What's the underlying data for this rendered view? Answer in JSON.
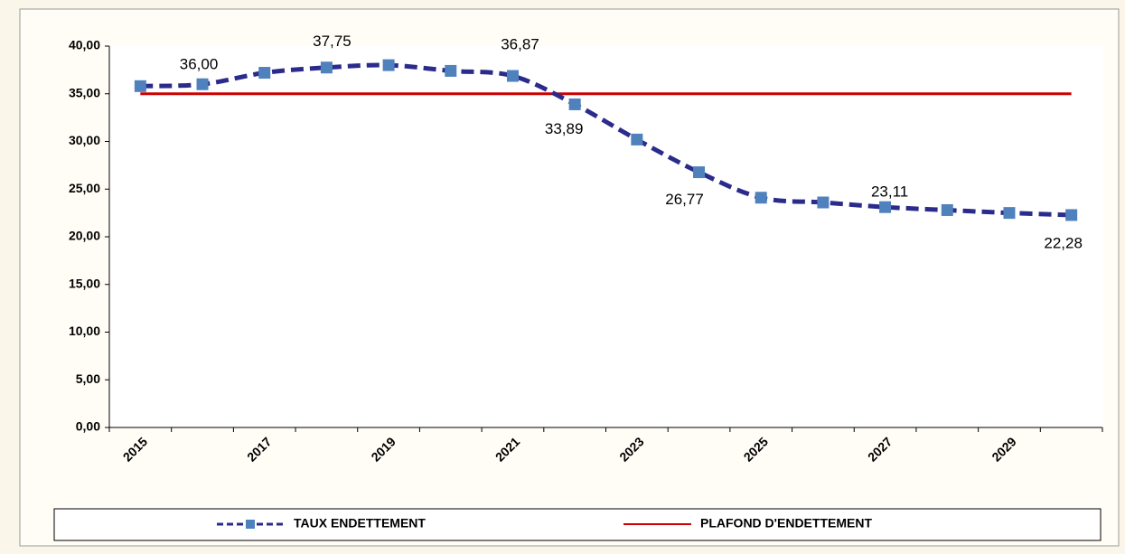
{
  "chart_data": {
    "type": "line",
    "categories": [
      "2015",
      null,
      "2017",
      null,
      "2019",
      null,
      "2021",
      null,
      "2023",
      null,
      "2025",
      null,
      "2027",
      null,
      "2029",
      null
    ],
    "series": [
      {
        "name": "TAUX ENDETTEMENT",
        "color": "#2b2b8c",
        "marker_color": "#4f81bd",
        "dashed": true,
        "smooth": true,
        "values": [
          35.8,
          36.0,
          37.2,
          37.75,
          38.0,
          37.4,
          36.87,
          33.89,
          30.2,
          26.77,
          24.1,
          23.6,
          23.11,
          22.8,
          22.5,
          22.28
        ],
        "value_labels": [
          null,
          "36,00",
          null,
          "37,75",
          null,
          null,
          "36,87",
          "33,89",
          null,
          "26,77",
          null,
          null,
          "23,11",
          null,
          null,
          "22,28"
        ]
      },
      {
        "name": "PLAFOND D'ENDETTEMENT",
        "color": "#cc0000",
        "dashed": false,
        "smooth": false,
        "values": [
          35,
          35,
          35,
          35,
          35,
          35,
          35,
          35,
          35,
          35,
          35,
          35,
          35,
          35,
          35,
          35
        ]
      }
    ],
    "ylim": [
      0,
      40
    ],
    "yticks": [
      {
        "value": 0,
        "label": "0,00"
      },
      {
        "value": 5,
        "label": "5,00"
      },
      {
        "value": 10,
        "label": "10,00"
      },
      {
        "value": 15,
        "label": "15,00"
      },
      {
        "value": 20,
        "label": "20,00"
      },
      {
        "value": 25,
        "label": "25,00"
      },
      {
        "value": 30,
        "label": "30,00"
      },
      {
        "value": 35,
        "label": "35,00"
      },
      {
        "value": 40,
        "label": "40,00"
      }
    ],
    "grid": false,
    "legend": "bottom"
  }
}
